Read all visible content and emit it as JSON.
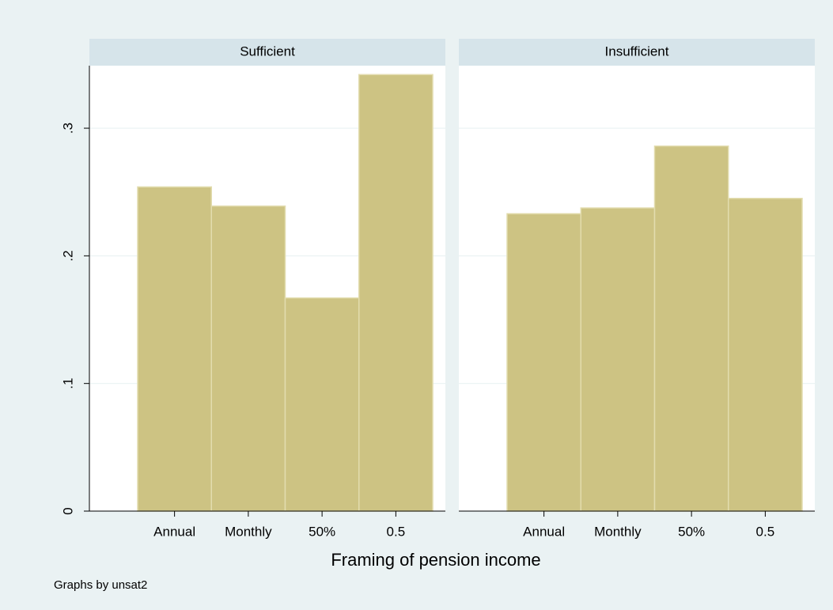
{
  "chart_data": [
    {
      "type": "bar",
      "title": "Sufficient",
      "categories": [
        "Annual",
        "Monthly",
        "50%",
        "0.5"
      ],
      "values": [
        0.254,
        0.239,
        0.167,
        0.342
      ],
      "color": "#cdc383",
      "ylim": [
        0,
        0.349
      ],
      "yticks": [
        0,
        {
          "value": 0.1,
          "label": ".1"
        },
        {
          "value": 0.2,
          "label": ".2"
        },
        {
          "value": 0.3,
          "label": ".3"
        }
      ],
      "grid": true
    },
    {
      "type": "bar",
      "title": "Insufficient",
      "categories": [
        "Annual",
        "Monthly",
        "50%",
        "0.5"
      ],
      "values": [
        0.233,
        0.2375,
        0.286,
        0.245
      ],
      "color": "#cdc383",
      "ylim": [
        0,
        0.349
      ],
      "grid": true
    }
  ],
  "xlabel": "Framing of pension income",
  "note": "Graphs by unsat2"
}
